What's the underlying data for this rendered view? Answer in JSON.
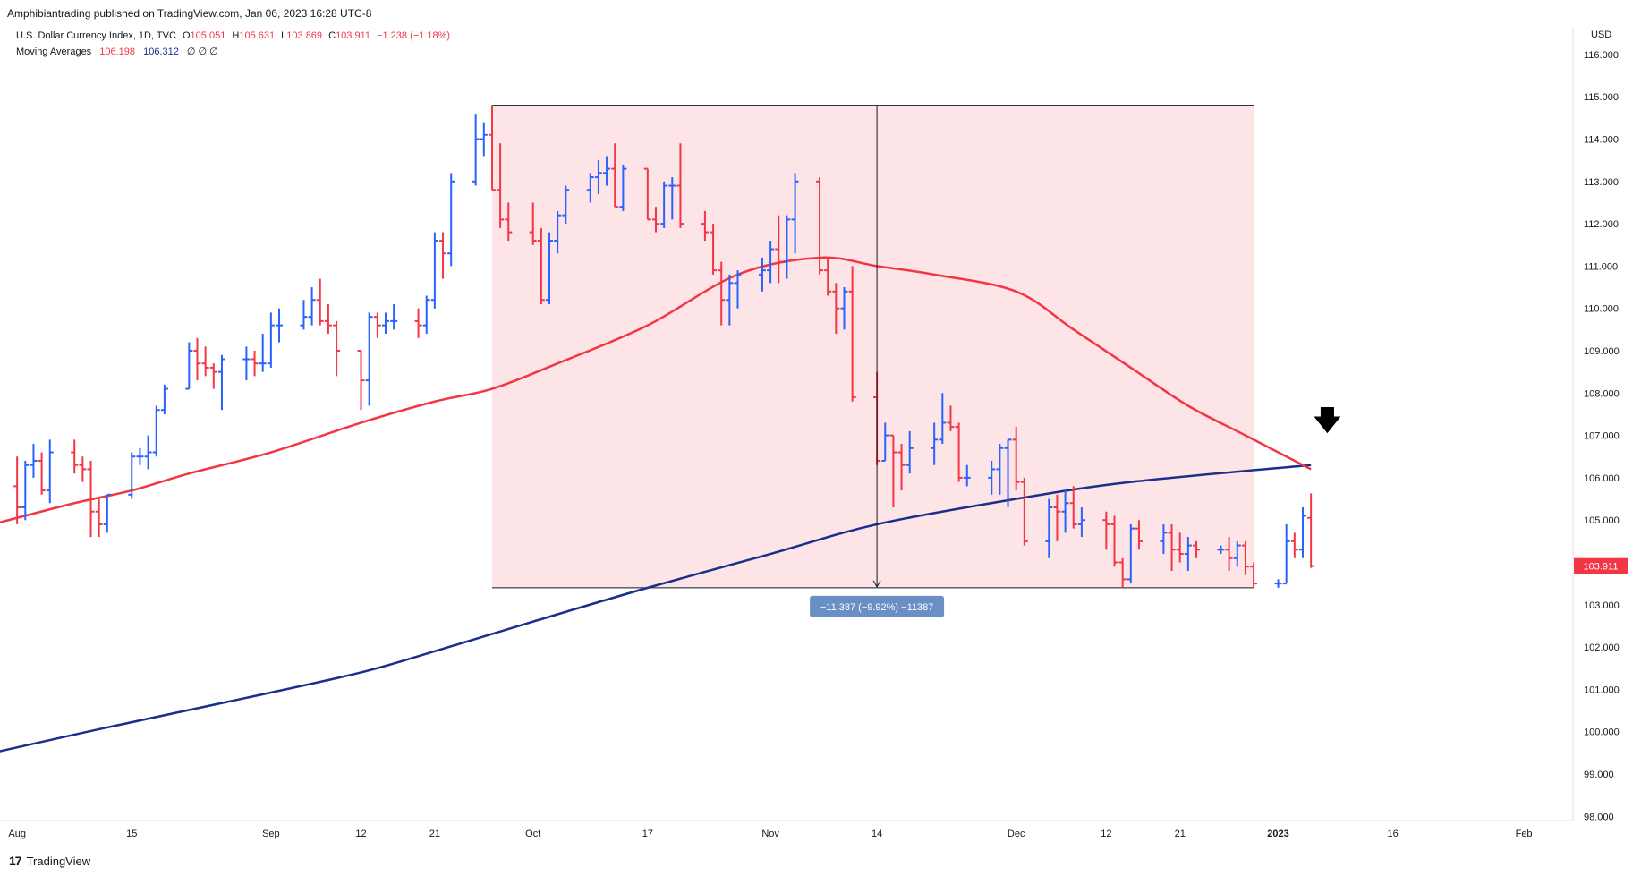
{
  "header": {
    "publisher": "Amphibiantrading published on TradingView.com, Jan 06, 2023 16:28 UTC-8"
  },
  "legend": {
    "symbol": "U.S. Dollar Currency Index, 1D, TVC",
    "o_label": "O",
    "o_value": "105.051",
    "h_label": "H",
    "h_value": "105.631",
    "l_label": "L",
    "l_value": "103.869",
    "c_label": "C",
    "c_value": "103.911",
    "change": "−1.238 (−1.18%)",
    "ma_label": "Moving Averages",
    "ma1_value": "106.198",
    "ma2_value": "106.312",
    "ma_extra": "∅ ∅ ∅"
  },
  "axis": {
    "currency": "USD",
    "last_price_label": "103.911"
  },
  "measure": {
    "label": "−11.387 (−9.92%) −11387"
  },
  "footer": {
    "brand": "TradingView",
    "mark": "17"
  },
  "annotations": {
    "arrow_icon": "down-arrow-icon"
  },
  "colors": {
    "up": "#2962ff",
    "down": "#f23645",
    "ma50": "#f23645",
    "ma200": "#1a2f8c",
    "shade": "#fde4e6",
    "measure_badge": "#6a8fc4"
  },
  "chart_data": {
    "type": "ohlc",
    "title": "U.S. Dollar Currency Index, 1D, TVC",
    "ylabel": "USD",
    "ylim": [
      97.9,
      116.4
    ],
    "y_ticks": [
      "98.000",
      "99.000",
      "100.000",
      "101.000",
      "102.000",
      "103.000",
      "104.000",
      "105.000",
      "106.000",
      "107.000",
      "108.000",
      "109.000",
      "110.000",
      "111.000",
      "112.000",
      "113.000",
      "114.000",
      "115.000",
      "116.000"
    ],
    "x_tick_labels": [
      {
        "label": "Aug",
        "date": "2022-08-01"
      },
      {
        "label": "15",
        "date": "2022-08-15"
      },
      {
        "label": "Sep",
        "date": "2022-09-01"
      },
      {
        "label": "12",
        "date": "2022-09-12"
      },
      {
        "label": "21",
        "date": "2022-09-21"
      },
      {
        "label": "Oct",
        "date": "2022-10-03"
      },
      {
        "label": "17",
        "date": "2022-10-17"
      },
      {
        "label": "Nov",
        "date": "2022-11-01"
      },
      {
        "label": "14",
        "date": "2022-11-14"
      },
      {
        "label": "Dec",
        "date": "2022-12-01"
      },
      {
        "label": "12",
        "date": "2022-12-12"
      },
      {
        "label": "21",
        "date": "2022-12-21"
      },
      {
        "label": "2023",
        "date": "2023-01-02"
      },
      {
        "label": "16",
        "date": "2023-01-16"
      },
      {
        "label": "Feb",
        "date": "2023-02-01"
      }
    ],
    "x_range": [
      "2022-07-31",
      "2023-02-07"
    ],
    "bars": [
      {
        "d": "2022-07-29",
        "o": 106.1,
        "h": 106.6,
        "l": 105.3,
        "c": 105.8
      },
      {
        "d": "2022-08-01",
        "o": 105.8,
        "h": 106.5,
        "l": 104.9,
        "c": 105.3
      },
      {
        "d": "2022-08-02",
        "o": 105.3,
        "h": 106.4,
        "l": 105.0,
        "c": 106.3
      },
      {
        "d": "2022-08-03",
        "o": 106.3,
        "h": 106.8,
        "l": 106.0,
        "c": 106.4
      },
      {
        "d": "2022-08-04",
        "o": 106.4,
        "h": 106.6,
        "l": 105.6,
        "c": 105.7
      },
      {
        "d": "2022-08-05",
        "o": 105.7,
        "h": 106.9,
        "l": 105.4,
        "c": 106.6
      },
      {
        "d": "2022-08-08",
        "o": 106.6,
        "h": 106.9,
        "l": 106.1,
        "c": 106.3
      },
      {
        "d": "2022-08-09",
        "o": 106.3,
        "h": 106.5,
        "l": 105.9,
        "c": 106.2
      },
      {
        "d": "2022-08-10",
        "o": 106.2,
        "h": 106.4,
        "l": 104.6,
        "c": 105.2
      },
      {
        "d": "2022-08-11",
        "o": 105.2,
        "h": 105.5,
        "l": 104.6,
        "c": 104.9
      },
      {
        "d": "2022-08-12",
        "o": 104.9,
        "h": 105.6,
        "l": 104.7,
        "c": 105.6
      },
      {
        "d": "2022-08-15",
        "o": 105.6,
        "h": 106.6,
        "l": 105.5,
        "c": 106.5
      },
      {
        "d": "2022-08-16",
        "o": 106.5,
        "h": 106.7,
        "l": 106.3,
        "c": 106.5
      },
      {
        "d": "2022-08-17",
        "o": 106.5,
        "h": 107.0,
        "l": 106.2,
        "c": 106.6
      },
      {
        "d": "2022-08-18",
        "o": 106.6,
        "h": 107.7,
        "l": 106.5,
        "c": 107.6
      },
      {
        "d": "2022-08-19",
        "o": 107.6,
        "h": 108.2,
        "l": 107.5,
        "c": 108.1
      },
      {
        "d": "2022-08-22",
        "o": 108.1,
        "h": 109.2,
        "l": 108.1,
        "c": 109.0
      },
      {
        "d": "2022-08-23",
        "o": 109.0,
        "h": 109.3,
        "l": 108.3,
        "c": 108.7
      },
      {
        "d": "2022-08-24",
        "o": 108.7,
        "h": 109.1,
        "l": 108.4,
        "c": 108.6
      },
      {
        "d": "2022-08-25",
        "o": 108.6,
        "h": 108.7,
        "l": 108.1,
        "c": 108.5
      },
      {
        "d": "2022-08-26",
        "o": 108.5,
        "h": 108.9,
        "l": 107.6,
        "c": 108.8
      },
      {
        "d": "2022-08-29",
        "o": 108.8,
        "h": 109.1,
        "l": 108.3,
        "c": 108.8
      },
      {
        "d": "2022-08-30",
        "o": 108.8,
        "h": 109.0,
        "l": 108.4,
        "c": 108.7
      },
      {
        "d": "2022-08-31",
        "o": 108.7,
        "h": 109.4,
        "l": 108.5,
        "c": 108.7
      },
      {
        "d": "2022-09-01",
        "o": 108.7,
        "h": 109.9,
        "l": 108.6,
        "c": 109.6
      },
      {
        "d": "2022-09-02",
        "o": 109.6,
        "h": 110.0,
        "l": 109.2,
        "c": 109.6
      },
      {
        "d": "2022-09-05",
        "o": 109.6,
        "h": 110.2,
        "l": 109.5,
        "c": 109.8
      },
      {
        "d": "2022-09-06",
        "o": 109.8,
        "h": 110.5,
        "l": 109.6,
        "c": 110.2
      },
      {
        "d": "2022-09-07",
        "o": 110.2,
        "h": 110.7,
        "l": 109.6,
        "c": 109.7
      },
      {
        "d": "2022-09-08",
        "o": 109.7,
        "h": 110.1,
        "l": 109.4,
        "c": 109.6
      },
      {
        "d": "2022-09-09",
        "o": 109.6,
        "h": 109.7,
        "l": 108.4,
        "c": 109.0
      },
      {
        "d": "2022-09-12",
        "o": 109.0,
        "h": 109.0,
        "l": 107.6,
        "c": 108.3
      },
      {
        "d": "2022-09-13",
        "o": 108.3,
        "h": 109.9,
        "l": 107.7,
        "c": 109.8
      },
      {
        "d": "2022-09-14",
        "o": 109.8,
        "h": 109.9,
        "l": 109.3,
        "c": 109.6
      },
      {
        "d": "2022-09-15",
        "o": 109.6,
        "h": 109.9,
        "l": 109.4,
        "c": 109.7
      },
      {
        "d": "2022-09-16",
        "o": 109.7,
        "h": 110.1,
        "l": 109.5,
        "c": 109.7
      },
      {
        "d": "2022-09-19",
        "o": 109.7,
        "h": 110.0,
        "l": 109.3,
        "c": 109.6
      },
      {
        "d": "2022-09-20",
        "o": 109.6,
        "h": 110.3,
        "l": 109.4,
        "c": 110.2
      },
      {
        "d": "2022-09-21",
        "o": 110.2,
        "h": 111.8,
        "l": 110.0,
        "c": 111.6
      },
      {
        "d": "2022-09-22",
        "o": 111.6,
        "h": 111.8,
        "l": 110.7,
        "c": 111.3
      },
      {
        "d": "2022-09-23",
        "o": 111.3,
        "h": 113.2,
        "l": 111.0,
        "c": 113.0
      },
      {
        "d": "2022-09-26",
        "o": 113.0,
        "h": 114.6,
        "l": 112.9,
        "c": 114.0
      },
      {
        "d": "2022-09-27",
        "o": 114.0,
        "h": 114.4,
        "l": 113.6,
        "c": 114.1
      },
      {
        "d": "2022-09-28",
        "o": 114.1,
        "h": 114.8,
        "l": 112.8,
        "c": 112.8
      },
      {
        "d": "2022-09-29",
        "o": 112.8,
        "h": 113.9,
        "l": 111.9,
        "c": 112.1
      },
      {
        "d": "2022-09-30",
        "o": 112.1,
        "h": 112.5,
        "l": 111.6,
        "c": 111.8
      },
      {
        "d": "2022-10-03",
        "o": 111.8,
        "h": 112.5,
        "l": 111.5,
        "c": 111.6
      },
      {
        "d": "2022-10-04",
        "o": 111.6,
        "h": 111.9,
        "l": 110.1,
        "c": 110.2
      },
      {
        "d": "2022-10-05",
        "o": 110.2,
        "h": 111.8,
        "l": 110.1,
        "c": 111.6
      },
      {
        "d": "2022-10-06",
        "o": 111.6,
        "h": 112.3,
        "l": 111.3,
        "c": 112.2
      },
      {
        "d": "2022-10-07",
        "o": 112.2,
        "h": 112.9,
        "l": 112.0,
        "c": 112.8
      },
      {
        "d": "2022-10-10",
        "o": 112.8,
        "h": 113.2,
        "l": 112.5,
        "c": 113.1
      },
      {
        "d": "2022-10-11",
        "o": 113.1,
        "h": 113.5,
        "l": 112.7,
        "c": 113.2
      },
      {
        "d": "2022-10-12",
        "o": 113.2,
        "h": 113.6,
        "l": 112.9,
        "c": 113.3
      },
      {
        "d": "2022-10-13",
        "o": 113.3,
        "h": 113.9,
        "l": 112.4,
        "c": 112.4
      },
      {
        "d": "2022-10-14",
        "o": 112.4,
        "h": 113.4,
        "l": 112.3,
        "c": 113.3
      },
      {
        "d": "2022-10-17",
        "o": 113.3,
        "h": 113.3,
        "l": 112.1,
        "c": 112.1
      },
      {
        "d": "2022-10-18",
        "o": 112.1,
        "h": 112.4,
        "l": 111.8,
        "c": 112.0
      },
      {
        "d": "2022-10-19",
        "o": 112.0,
        "h": 113.0,
        "l": 111.9,
        "c": 112.9
      },
      {
        "d": "2022-10-20",
        "o": 112.9,
        "h": 113.1,
        "l": 112.1,
        "c": 112.9
      },
      {
        "d": "2022-10-21",
        "o": 112.9,
        "h": 113.9,
        "l": 111.9,
        "c": 112.0
      },
      {
        "d": "2022-10-24",
        "o": 112.0,
        "h": 112.3,
        "l": 111.6,
        "c": 111.8
      },
      {
        "d": "2022-10-25",
        "o": 111.8,
        "h": 112.0,
        "l": 110.8,
        "c": 110.9
      },
      {
        "d": "2022-10-26",
        "o": 110.9,
        "h": 111.1,
        "l": 109.6,
        "c": 110.2
      },
      {
        "d": "2022-10-27",
        "o": 110.2,
        "h": 110.8,
        "l": 109.6,
        "c": 110.6
      },
      {
        "d": "2022-10-28",
        "o": 110.6,
        "h": 110.9,
        "l": 110.0,
        "c": 110.8
      },
      {
        "d": "2022-10-31",
        "o": 110.8,
        "h": 111.2,
        "l": 110.4,
        "c": 110.9
      },
      {
        "d": "2022-11-01",
        "o": 110.9,
        "h": 111.6,
        "l": 110.6,
        "c": 111.4
      },
      {
        "d": "2022-11-02",
        "o": 111.4,
        "h": 112.2,
        "l": 110.6,
        "c": 111.1
      },
      {
        "d": "2022-11-03",
        "o": 111.1,
        "h": 112.2,
        "l": 110.7,
        "c": 112.1
      },
      {
        "d": "2022-11-04",
        "o": 112.1,
        "h": 113.2,
        "l": 111.3,
        "c": 113.0
      },
      {
        "d": "2022-11-07",
        "o": 113.0,
        "h": 113.1,
        "l": 110.8,
        "c": 110.9
      },
      {
        "d": "2022-11-08",
        "o": 110.9,
        "h": 111.2,
        "l": 110.3,
        "c": 110.4
      },
      {
        "d": "2022-11-09",
        "o": 110.4,
        "h": 110.6,
        "l": 109.4,
        "c": 110.0
      },
      {
        "d": "2022-11-10",
        "o": 110.0,
        "h": 110.5,
        "l": 109.5,
        "c": 110.4
      },
      {
        "d": "2022-11-11",
        "o": 110.4,
        "h": 111.0,
        "l": 107.8,
        "c": 107.9
      },
      {
        "d": "2022-11-14",
        "o": 107.9,
        "h": 108.5,
        "l": 106.3,
        "c": 106.4
      },
      {
        "d": "2022-11-15",
        "o": 106.4,
        "h": 107.3,
        "l": 106.4,
        "c": 107.0
      },
      {
        "d": "2022-11-16",
        "o": 107.0,
        "h": 107.0,
        "l": 105.3,
        "c": 106.6
      },
      {
        "d": "2022-11-17",
        "o": 106.6,
        "h": 106.8,
        "l": 105.7,
        "c": 106.3
      },
      {
        "d": "2022-11-18",
        "o": 106.3,
        "h": 107.1,
        "l": 106.1,
        "c": 106.7
      },
      {
        "d": "2022-11-21",
        "o": 106.7,
        "h": 107.3,
        "l": 106.3,
        "c": 106.9
      },
      {
        "d": "2022-11-22",
        "o": 106.9,
        "h": 108.0,
        "l": 106.8,
        "c": 107.3
      },
      {
        "d": "2022-11-23",
        "o": 107.3,
        "h": 107.7,
        "l": 107.1,
        "c": 107.2
      },
      {
        "d": "2022-11-24",
        "o": 107.2,
        "h": 107.3,
        "l": 105.9,
        "c": 106.0
      },
      {
        "d": "2022-11-25",
        "o": 106.0,
        "h": 106.3,
        "l": 105.8,
        "c": 106.0
      },
      {
        "d": "2022-11-28",
        "o": 106.0,
        "h": 106.4,
        "l": 105.6,
        "c": 106.2
      },
      {
        "d": "2022-11-29",
        "o": 106.2,
        "h": 106.8,
        "l": 105.6,
        "c": 106.7
      },
      {
        "d": "2022-11-30",
        "o": 106.7,
        "h": 106.9,
        "l": 105.3,
        "c": 106.9
      },
      {
        "d": "2022-12-01",
        "o": 106.9,
        "h": 107.2,
        "l": 105.7,
        "c": 105.9
      },
      {
        "d": "2022-12-02",
        "o": 105.9,
        "h": 106.0,
        "l": 104.4,
        "c": 104.5
      },
      {
        "d": "2022-12-05",
        "o": 104.5,
        "h": 105.5,
        "l": 104.1,
        "c": 105.3
      },
      {
        "d": "2022-12-06",
        "o": 105.3,
        "h": 105.6,
        "l": 104.5,
        "c": 105.2
      },
      {
        "d": "2022-12-07",
        "o": 105.2,
        "h": 105.7,
        "l": 104.7,
        "c": 105.4
      },
      {
        "d": "2022-12-08",
        "o": 105.4,
        "h": 105.8,
        "l": 104.8,
        "c": 104.9
      },
      {
        "d": "2022-12-09",
        "o": 104.9,
        "h": 105.3,
        "l": 104.6,
        "c": 105.0
      },
      {
        "d": "2022-12-12",
        "o": 105.0,
        "h": 105.2,
        "l": 104.3,
        "c": 104.9
      },
      {
        "d": "2022-12-13",
        "o": 104.9,
        "h": 105.1,
        "l": 103.9,
        "c": 104.0
      },
      {
        "d": "2022-12-14",
        "o": 104.0,
        "h": 104.1,
        "l": 103.4,
        "c": 103.6
      },
      {
        "d": "2022-12-15",
        "o": 103.6,
        "h": 104.9,
        "l": 103.5,
        "c": 104.8
      },
      {
        "d": "2022-12-16",
        "o": 104.8,
        "h": 105.0,
        "l": 104.3,
        "c": 104.5
      },
      {
        "d": "2022-12-19",
        "o": 104.5,
        "h": 104.9,
        "l": 104.2,
        "c": 104.7
      },
      {
        "d": "2022-12-20",
        "o": 104.7,
        "h": 104.9,
        "l": 103.8,
        "c": 104.3
      },
      {
        "d": "2022-12-21",
        "o": 104.3,
        "h": 104.7,
        "l": 104.0,
        "c": 104.2
      },
      {
        "d": "2022-12-22",
        "o": 104.2,
        "h": 104.6,
        "l": 103.8,
        "c": 104.4
      },
      {
        "d": "2022-12-23",
        "o": 104.4,
        "h": 104.5,
        "l": 104.1,
        "c": 104.3
      },
      {
        "d": "2022-12-26",
        "o": 104.3,
        "h": 104.4,
        "l": 104.2,
        "c": 104.3
      },
      {
        "d": "2022-12-27",
        "o": 104.3,
        "h": 104.6,
        "l": 103.8,
        "c": 104.1
      },
      {
        "d": "2022-12-28",
        "o": 104.1,
        "h": 104.5,
        "l": 103.9,
        "c": 104.4
      },
      {
        "d": "2022-12-29",
        "o": 104.4,
        "h": 104.5,
        "l": 103.7,
        "c": 103.9
      },
      {
        "d": "2022-12-30",
        "o": 103.9,
        "h": 104.0,
        "l": 103.4,
        "c": 103.5
      },
      {
        "d": "2023-01-02",
        "o": 103.5,
        "h": 103.6,
        "l": 103.4,
        "c": 103.5
      },
      {
        "d": "2023-01-03",
        "o": 103.5,
        "h": 104.9,
        "l": 103.5,
        "c": 104.5
      },
      {
        "d": "2023-01-04",
        "o": 104.5,
        "h": 104.7,
        "l": 104.1,
        "c": 104.3
      },
      {
        "d": "2023-01-05",
        "o": 104.3,
        "h": 105.3,
        "l": 104.1,
        "c": 105.1
      },
      {
        "d": "2023-01-06",
        "o": 105.051,
        "h": 105.631,
        "l": 103.869,
        "c": 103.911
      }
    ],
    "ma_fast": {
      "name": "MA fast",
      "points": [
        [
          "2022-07-29",
          104.9
        ],
        [
          "2022-08-08",
          105.4
        ],
        [
          "2022-08-15",
          105.7
        ],
        [
          "2022-08-22",
          106.1
        ],
        [
          "2022-09-01",
          106.6
        ],
        [
          "2022-09-12",
          107.3
        ],
        [
          "2022-09-21",
          107.8
        ],
        [
          "2022-09-28",
          108.1
        ],
        [
          "2022-10-06",
          108.7
        ],
        [
          "2022-10-17",
          109.6
        ],
        [
          "2022-10-28",
          110.8
        ],
        [
          "2022-11-07",
          111.2
        ],
        [
          "2022-11-14",
          111.0
        ],
        [
          "2022-11-21",
          110.8
        ],
        [
          "2022-12-01",
          110.4
        ],
        [
          "2022-12-08",
          109.5
        ],
        [
          "2022-12-15",
          108.6
        ],
        [
          "2022-12-22",
          107.7
        ],
        [
          "2022-12-29",
          107.0
        ],
        [
          "2023-01-06",
          106.2
        ]
      ]
    },
    "ma_slow": {
      "name": "MA slow",
      "points": [
        [
          "2022-07-29",
          99.5
        ],
        [
          "2022-08-12",
          100.1
        ],
        [
          "2022-08-29",
          100.8
        ],
        [
          "2022-09-12",
          101.4
        ],
        [
          "2022-09-21",
          101.9
        ],
        [
          "2022-10-03",
          102.6
        ],
        [
          "2022-10-17",
          103.4
        ],
        [
          "2022-11-01",
          104.2
        ],
        [
          "2022-11-14",
          104.9
        ],
        [
          "2022-12-01",
          105.5
        ],
        [
          "2022-12-15",
          105.9
        ],
        [
          "2023-01-06",
          106.3
        ]
      ]
    },
    "range_box": {
      "from": "2022-09-28",
      "to": "2022-12-30",
      "high": 114.8,
      "low": 103.4,
      "mid": "2022-11-14"
    },
    "last_price": 103.911
  }
}
